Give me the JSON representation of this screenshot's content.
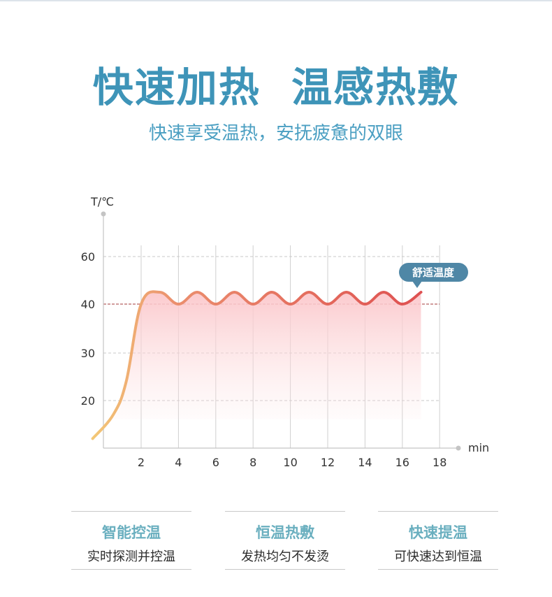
{
  "header": {
    "title": "快速加热  温感热敷",
    "subtitle": "快速享受温热，安抚疲惫的双眼"
  },
  "chart_data": {
    "type": "line",
    "ylabel": "T/℃",
    "xlabel": "min",
    "x_ticks": [
      2,
      4,
      6,
      8,
      10,
      12,
      14,
      16,
      18
    ],
    "y_ticks": [
      20,
      30,
      40,
      60
    ],
    "reference_line": 40,
    "annotation": "舒适温度",
    "grid": true,
    "colors": {
      "start": "#f2c878",
      "end": "#e05555",
      "fill": "#fbd0d3",
      "reference": "#a33a3a",
      "annotation_bg": "#4f87a6"
    },
    "series": [
      {
        "points": [
          [
            -0.6,
            12
          ],
          [
            0.5,
            17
          ],
          [
            1.2,
            24
          ],
          [
            2,
            40
          ],
          [
            3,
            45
          ],
          [
            4,
            40
          ],
          [
            5,
            45
          ],
          [
            6,
            40
          ],
          [
            7,
            45
          ],
          [
            8,
            40
          ],
          [
            9,
            45
          ],
          [
            10,
            40
          ],
          [
            11,
            45
          ],
          [
            12,
            40
          ],
          [
            13,
            45
          ],
          [
            14,
            40
          ],
          [
            15,
            45
          ],
          [
            16,
            40
          ],
          [
            17,
            45
          ]
        ]
      }
    ]
  },
  "features": [
    {
      "title": "智能控温",
      "desc": "实时探测并控温"
    },
    {
      "title": "恒温热敷",
      "desc": "发热均匀不发烫"
    },
    {
      "title": "快速提温",
      "desc": "可快速达到恒温"
    }
  ]
}
